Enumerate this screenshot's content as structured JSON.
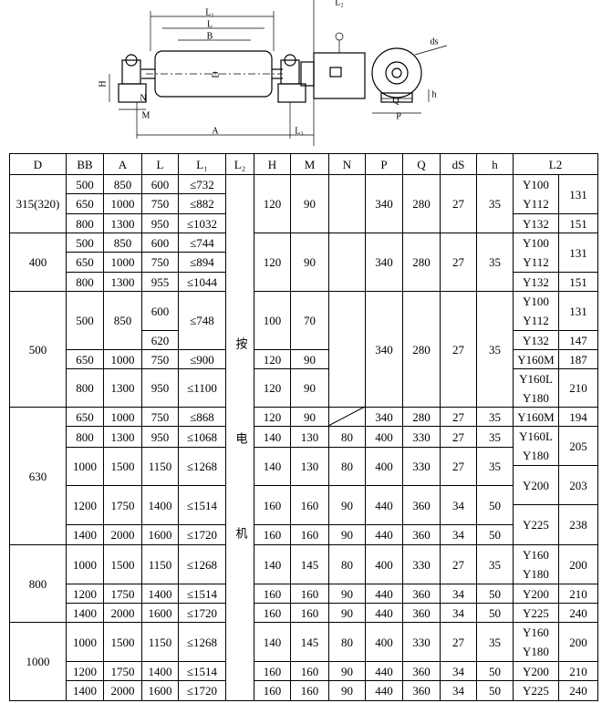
{
  "diagram": {
    "labels": [
      "L₂",
      "L₁",
      "L",
      "B",
      "D",
      "H",
      "N",
      "M",
      "A",
      "L₃",
      "ds",
      "Q",
      "P",
      "h"
    ]
  },
  "table": {
    "header": [
      "D",
      "BB",
      "A",
      "L",
      "L₁",
      "L₂",
      "H",
      "M",
      "N",
      "P",
      "Q",
      "dS",
      "h",
      "L2"
    ],
    "note": "按电机",
    "groups": [
      {
        "D": "315(320)",
        "cells": [
          500,
          850,
          600,
          "≤732",
          650,
          1000,
          750,
          "≤882",
          800,
          1300,
          950,
          "≤1032",
          120,
          90,
          340,
          280,
          27,
          35,
          [
            "Y100",
            "Y112"
          ],
          131,
          "Y132",
          151
        ]
      },
      {
        "D": "400",
        "cells": [
          500,
          850,
          600,
          "≤744",
          650,
          1000,
          750,
          "≤894",
          800,
          1300,
          955,
          "≤1044",
          120,
          90,
          340,
          280,
          27,
          35,
          [
            "Y100",
            "Y112"
          ],
          131,
          "Y132",
          151
        ]
      },
      {
        "D": "500",
        "cells": [
          500,
          850,
          600,
          620,
          "≤748",
          100,
          70,
          650,
          1000,
          750,
          "≤900",
          120,
          90,
          800,
          1300,
          950,
          "≤1100",
          120,
          90,
          340,
          280,
          27,
          35,
          [
            "Y100",
            "Y112"
          ],
          131,
          "Y132",
          147,
          "Y160M",
          187,
          [
            "Y160L",
            "Y180"
          ],
          210
        ]
      },
      {
        "D": "630",
        "cells": [
          650,
          1000,
          750,
          "≤868",
          120,
          90,
          340,
          280,
          27,
          35,
          800,
          1300,
          950,
          "≤1068",
          140,
          130,
          80,
          400,
          330,
          27,
          35,
          1000,
          1500,
          1150,
          "≤1268",
          140,
          130,
          80,
          400,
          330,
          27,
          35,
          1200,
          1750,
          1400,
          "≤1514",
          160,
          160,
          90,
          440,
          360,
          34,
          50,
          1400,
          2000,
          1600,
          "≤1720",
          160,
          160,
          90,
          440,
          360,
          34,
          50,
          "Y160M",
          194,
          [
            "Y160L",
            "Y180"
          ],
          205,
          "Y200",
          203,
          "Y225",
          238
        ]
      },
      {
        "D": "800",
        "cells": [
          1000,
          1500,
          1150,
          "≤1268",
          140,
          145,
          80,
          400,
          330,
          27,
          35,
          [
            "Y160",
            "Y180"
          ],
          200,
          1200,
          1750,
          1400,
          "≤1514",
          160,
          160,
          90,
          440,
          360,
          34,
          50,
          "Y200",
          210,
          1400,
          2000,
          1600,
          "≤1720",
          160,
          160,
          90,
          440,
          360,
          34,
          50,
          "Y225",
          240
        ]
      },
      {
        "D": "1000",
        "cells": [
          1000,
          1500,
          1150,
          "≤1268",
          140,
          145,
          80,
          400,
          330,
          27,
          35,
          [
            "Y160",
            "Y180"
          ],
          200,
          1200,
          1750,
          1400,
          "≤1514",
          160,
          160,
          90,
          440,
          360,
          34,
          50,
          "Y200",
          210,
          1400,
          2000,
          1600,
          "≤1720",
          160,
          160,
          90,
          440,
          360,
          34,
          50,
          "Y225",
          240
        ]
      }
    ]
  }
}
